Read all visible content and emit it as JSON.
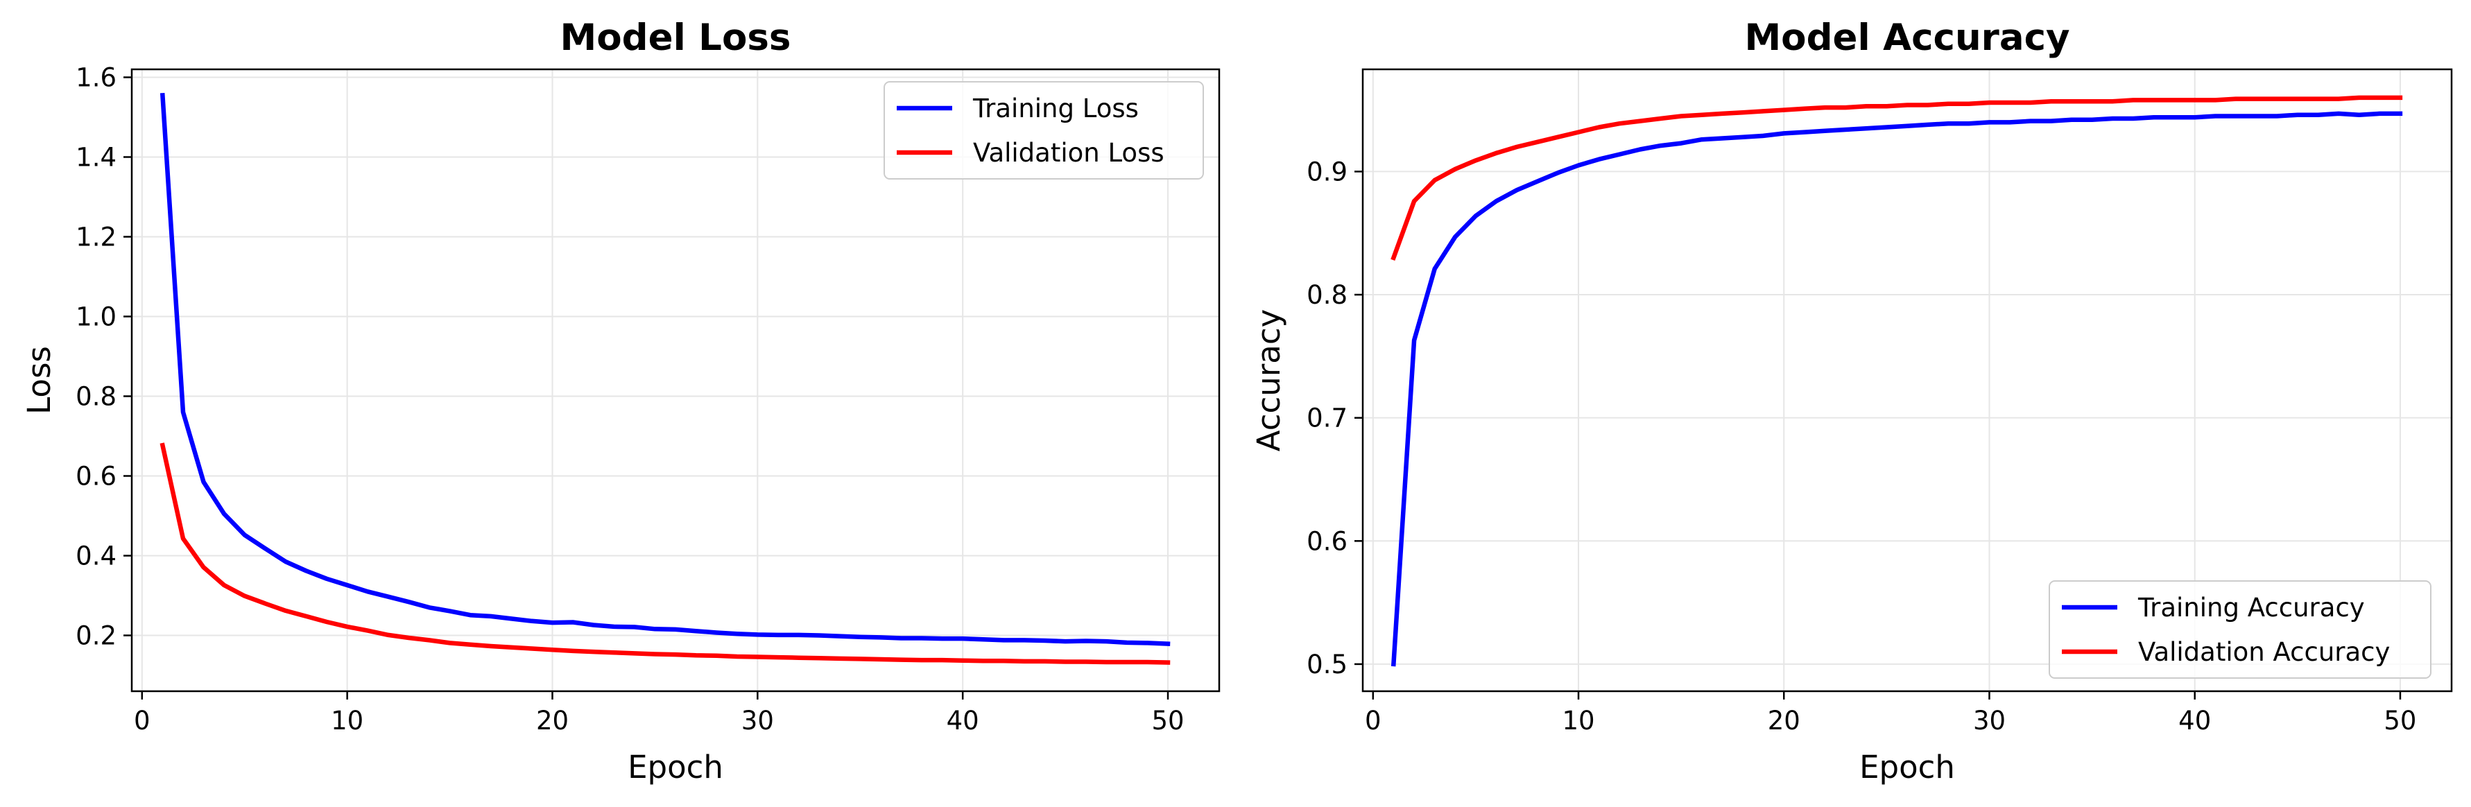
{
  "chart_data": [
    {
      "type": "line",
      "title": "Model Loss",
      "xlabel": "Epoch",
      "ylabel": "Loss",
      "xlim": [
        -0.5,
        52.5
      ],
      "ylim": [
        0.06,
        1.62
      ],
      "xticks": [
        0,
        10,
        20,
        30,
        40,
        50
      ],
      "yticks": [
        0.2,
        0.4,
        0.6,
        0.8,
        1.0,
        1.2,
        1.4,
        1.6
      ],
      "grid": true,
      "legend_position": "upper right",
      "x": [
        1,
        2,
        3,
        4,
        5,
        6,
        7,
        8,
        9,
        10,
        11,
        12,
        13,
        14,
        15,
        16,
        17,
        18,
        19,
        20,
        21,
        22,
        23,
        24,
        25,
        26,
        27,
        28,
        29,
        30,
        31,
        32,
        33,
        34,
        35,
        36,
        37,
        38,
        39,
        40,
        41,
        42,
        43,
        44,
        45,
        46,
        47,
        48,
        49,
        50
      ],
      "series": [
        {
          "name": "Training Loss",
          "color": "#0000ff",
          "values": [
            1.555,
            0.76,
            0.585,
            0.505,
            0.452,
            0.418,
            0.385,
            0.362,
            0.342,
            0.326,
            0.31,
            0.297,
            0.284,
            0.27,
            0.261,
            0.251,
            0.248,
            0.242,
            0.236,
            0.232,
            0.233,
            0.226,
            0.222,
            0.221,
            0.216,
            0.215,
            0.211,
            0.207,
            0.204,
            0.202,
            0.201,
            0.201,
            0.2,
            0.198,
            0.196,
            0.195,
            0.193,
            0.193,
            0.192,
            0.192,
            0.19,
            0.188,
            0.188,
            0.187,
            0.185,
            0.186,
            0.185,
            0.182,
            0.181,
            0.179
          ]
        },
        {
          "name": "Validation Loss",
          "color": "#ff0000",
          "values": [
            0.677,
            0.443,
            0.371,
            0.326,
            0.299,
            0.28,
            0.262,
            0.248,
            0.234,
            0.222,
            0.212,
            0.201,
            0.194,
            0.188,
            0.181,
            0.177,
            0.173,
            0.17,
            0.167,
            0.164,
            0.161,
            0.159,
            0.157,
            0.155,
            0.153,
            0.152,
            0.15,
            0.149,
            0.147,
            0.146,
            0.145,
            0.144,
            0.143,
            0.142,
            0.141,
            0.14,
            0.139,
            0.138,
            0.138,
            0.137,
            0.136,
            0.136,
            0.135,
            0.135,
            0.134,
            0.134,
            0.133,
            0.133,
            0.133,
            0.132
          ]
        }
      ]
    },
    {
      "type": "line",
      "title": "Model Accuracy",
      "xlabel": "Epoch",
      "ylabel": "Accuracy",
      "xlim": [
        -0.5,
        52.5
      ],
      "ylim": [
        0.478,
        0.983
      ],
      "xticks": [
        0,
        10,
        20,
        30,
        40,
        50
      ],
      "yticks": [
        0.5,
        0.6,
        0.7,
        0.8,
        0.9
      ],
      "grid": true,
      "legend_position": "lower right",
      "x": [
        1,
        2,
        3,
        4,
        5,
        6,
        7,
        8,
        9,
        10,
        11,
        12,
        13,
        14,
        15,
        16,
        17,
        18,
        19,
        20,
        21,
        22,
        23,
        24,
        25,
        26,
        27,
        28,
        29,
        30,
        31,
        32,
        33,
        34,
        35,
        36,
        37,
        38,
        39,
        40,
        41,
        42,
        43,
        44,
        45,
        46,
        47,
        48,
        49,
        50
      ],
      "series": [
        {
          "name": "Training Accuracy",
          "color": "#0000ff",
          "values": [
            0.5,
            0.763,
            0.821,
            0.847,
            0.864,
            0.876,
            0.885,
            0.892,
            0.899,
            0.905,
            0.91,
            0.914,
            0.918,
            0.921,
            0.923,
            0.926,
            0.927,
            0.928,
            0.929,
            0.931,
            0.932,
            0.933,
            0.934,
            0.935,
            0.936,
            0.937,
            0.938,
            0.939,
            0.939,
            0.94,
            0.94,
            0.941,
            0.941,
            0.942,
            0.942,
            0.943,
            0.943,
            0.944,
            0.944,
            0.944,
            0.945,
            0.945,
            0.945,
            0.945,
            0.946,
            0.946,
            0.947,
            0.946,
            0.947,
            0.947
          ]
        },
        {
          "name": "Validation Accuracy",
          "color": "#ff0000",
          "values": [
            0.83,
            0.876,
            0.893,
            0.902,
            0.909,
            0.915,
            0.92,
            0.924,
            0.928,
            0.932,
            0.936,
            0.939,
            0.941,
            0.943,
            0.945,
            0.946,
            0.947,
            0.948,
            0.949,
            0.95,
            0.951,
            0.952,
            0.952,
            0.953,
            0.953,
            0.954,
            0.954,
            0.955,
            0.955,
            0.956,
            0.956,
            0.956,
            0.957,
            0.957,
            0.957,
            0.957,
            0.958,
            0.958,
            0.958,
            0.958,
            0.958,
            0.959,
            0.959,
            0.959,
            0.959,
            0.959,
            0.959,
            0.96,
            0.96,
            0.96
          ]
        }
      ]
    }
  ]
}
